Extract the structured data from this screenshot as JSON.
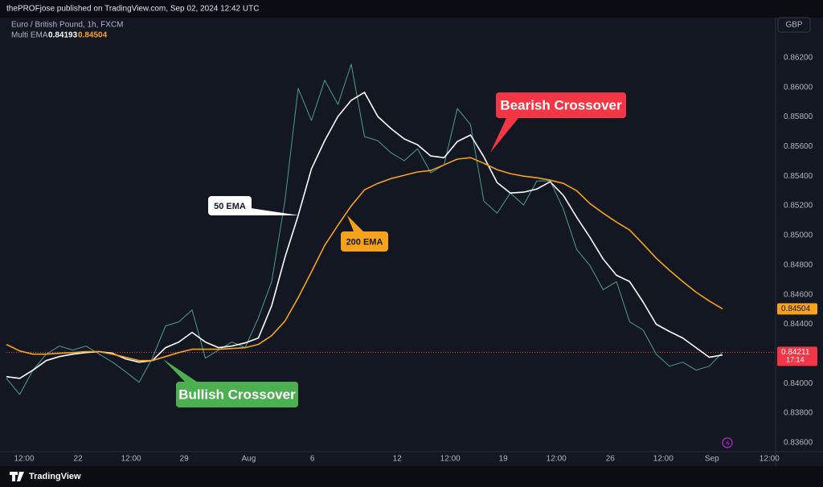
{
  "header": {
    "published": "thePROFjose published on TradingView.com, Sep 02, 2024 12:42 UTC"
  },
  "footer": {
    "brand": "TradingView"
  },
  "chart_data": {
    "type": "line",
    "symbol": "Euro / British Pound, 1h, FXCM",
    "indicator": "Multi EMA",
    "currency": "GBP",
    "ema_values": [
      0.84193,
      0.84504
    ],
    "ema_colors": [
      "#ffffff",
      "#f7a21b"
    ],
    "current_price": 0.84211,
    "current_color": "#f23645",
    "countdown": "17:14",
    "grid": false,
    "x": [
      0,
      15,
      30,
      45,
      60,
      75,
      90,
      105,
      120,
      135,
      150,
      165,
      180,
      195,
      210,
      225,
      240,
      255,
      270,
      285,
      300,
      315,
      330,
      345,
      360,
      375,
      390,
      405,
      420,
      435,
      450,
      465,
      480,
      495,
      510,
      525,
      540,
      555,
      570,
      585,
      600,
      615,
      630,
      645,
      660,
      675,
      690,
      705,
      720,
      735,
      750,
      765,
      780,
      795,
      810
    ],
    "xlim": [
      0,
      870
    ],
    "xticks": [
      {
        "value": 20,
        "label": "12:00"
      },
      {
        "value": 81,
        "label": "22"
      },
      {
        "value": 141,
        "label": "12:00"
      },
      {
        "value": 201,
        "label": "29"
      },
      {
        "value": 274,
        "label": "Aug"
      },
      {
        "value": 346,
        "label": "6"
      },
      {
        "value": 442,
        "label": "12"
      },
      {
        "value": 502,
        "label": "12:00"
      },
      {
        "value": 562,
        "label": "19"
      },
      {
        "value": 622,
        "label": "12:00"
      },
      {
        "value": 683,
        "label": "26"
      },
      {
        "value": 743,
        "label": "12:00"
      },
      {
        "value": 798,
        "label": "Sep"
      },
      {
        "value": 863,
        "label": "12:00"
      }
    ],
    "ylim": [
      0.8354,
      0.8647
    ],
    "yticks": [
      {
        "value": 0.836,
        "label": "0.83600"
      },
      {
        "value": 0.838,
        "label": "0.83800"
      },
      {
        "value": 0.84,
        "label": "0.84000"
      },
      {
        "value": 0.842,
        "label": "0.84200"
      },
      {
        "value": 0.844,
        "label": "0.84400"
      },
      {
        "value": 0.846,
        "label": "0.84600"
      },
      {
        "value": 0.848,
        "label": "0.84800"
      },
      {
        "value": 0.85,
        "label": "0.85000"
      },
      {
        "value": 0.852,
        "label": "0.85200"
      },
      {
        "value": 0.854,
        "label": "0.85400"
      },
      {
        "value": 0.856,
        "label": "0.85600"
      },
      {
        "value": 0.858,
        "label": "0.85800"
      },
      {
        "value": 0.86,
        "label": "0.86000"
      },
      {
        "value": 0.862,
        "label": "0.86200"
      }
    ],
    "series": [
      {
        "color": "#4f9a90",
        "values": [
          0.84035,
          0.83926,
          0.8409,
          0.84198,
          0.84253,
          0.84226,
          0.84253,
          0.84198,
          0.84144,
          0.84079,
          0.84008,
          0.84171,
          0.84389,
          0.84416,
          0.84497,
          0.84171,
          0.84226,
          0.8428,
          0.84242,
          0.84443,
          0.84688,
          0.85232,
          0.85993,
          0.85776,
          0.86048,
          0.85884,
          0.86156,
          0.85667,
          0.8564,
          0.85558,
          0.85504,
          0.85585,
          0.85422,
          0.85476,
          0.85857,
          0.85748,
          0.85232,
          0.8515,
          0.85286,
          0.85205,
          0.85368,
          0.85368,
          0.85177,
          0.84905,
          0.84797,
          0.84633,
          0.84688,
          0.84416,
          0.84362,
          0.84198,
          0.84117,
          0.84144,
          0.8409,
          0.84117,
          0.84211
        ]
      },
      {
        "color": "#ffffff",
        "values": [
          0.84046,
          0.84035,
          0.8409,
          0.84155,
          0.84182,
          0.84198,
          0.84209,
          0.84215,
          0.84204,
          0.84166,
          0.84144,
          0.84155,
          0.84242,
          0.8428,
          0.84345,
          0.8428,
          0.84242,
          0.84253,
          0.84274,
          0.84307,
          0.84525,
          0.84851,
          0.85134,
          0.85449,
          0.8564,
          0.85803,
          0.85912,
          0.85966,
          0.85803,
          0.85721,
          0.85651,
          0.85612,
          0.85536,
          0.85525,
          0.85634,
          0.85678,
          0.85531,
          0.85357,
          0.85286,
          0.85292,
          0.85313,
          0.85362,
          0.8527,
          0.85123,
          0.84987,
          0.8484,
          0.84731,
          0.84688,
          0.84552,
          0.844,
          0.84351,
          0.84307,
          0.84242,
          0.84177,
          0.84193
        ]
      },
      {
        "color": "#f7a21b",
        "values": [
          0.84264,
          0.8422,
          0.84198,
          0.84198,
          0.84204,
          0.84209,
          0.84215,
          0.84215,
          0.84198,
          0.84177,
          0.84155,
          0.84155,
          0.84182,
          0.84209,
          0.84231,
          0.84231,
          0.84231,
          0.84236,
          0.84242,
          0.84264,
          0.84323,
          0.84421,
          0.84579,
          0.84753,
          0.84933,
          0.85069,
          0.85199,
          0.85308,
          0.85351,
          0.85384,
          0.85406,
          0.85428,
          0.85438,
          0.85476,
          0.85515,
          0.85525,
          0.85487,
          0.85444,
          0.85417,
          0.854,
          0.85389,
          0.85373,
          0.85351,
          0.85302,
          0.85215,
          0.8515,
          0.8509,
          0.85036,
          0.84943,
          0.84846,
          0.84764,
          0.84688,
          0.84617,
          0.84557,
          0.84504
        ]
      }
    ],
    "annotations": [
      {
        "text": "Bearish Crossover",
        "color": "#f23645"
      },
      {
        "text": "Bullish Crossover",
        "color": "#4caf50"
      },
      {
        "text": "50 EMA",
        "color": "#ffffff"
      },
      {
        "text": "200 EMA",
        "color": "#f7a21b"
      }
    ]
  }
}
